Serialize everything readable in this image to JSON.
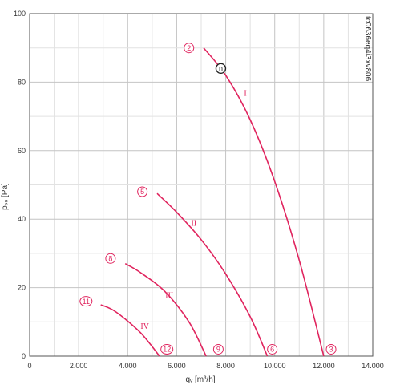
{
  "chart_data": {
    "type": "line",
    "title": "",
    "xlabel": "qᵥ [m³/h]",
    "ylabel": "pₛₒ [Pa]",
    "xlim": [
      0,
      14000
    ],
    "ylim": [
      0,
      100
    ],
    "x_ticks": [
      "0",
      "2.000",
      "4.000",
      "6.000",
      "8.000",
      "10.000",
      "12.000",
      "14.000"
    ],
    "y_ticks": [
      "0",
      "20",
      "40",
      "60",
      "80",
      "100"
    ],
    "grid": true,
    "side_code": "tc0636eq4i3xv806",
    "colors": {
      "curve": "#e0245e",
      "grid": "#c8c8c8",
      "axis": "#555555"
    },
    "series": [
      {
        "label": "I",
        "x": [
          7100,
          8000,
          9000,
          10000,
          11000,
          12000
        ],
        "y": [
          90,
          82,
          69,
          51,
          28,
          0
        ]
      },
      {
        "label": "II",
        "x": [
          5200,
          6000,
          7000,
          8000,
          9000,
          9700
        ],
        "y": [
          47.5,
          42,
          34,
          24,
          11.5,
          0
        ]
      },
      {
        "label": "III",
        "x": [
          3900,
          4500,
          5500,
          6500,
          7200
        ],
        "y": [
          27,
          24.5,
          19,
          10,
          0
        ]
      },
      {
        "label": "IV",
        "x": [
          2900,
          3500,
          4500,
          5300
        ],
        "y": [
          15,
          13,
          7,
          0
        ]
      }
    ],
    "markers": [
      {
        "label": "2",
        "x": 6500,
        "y": 90
      },
      {
        "label": "n",
        "x": 7800,
        "y": 84,
        "style": "dark"
      },
      {
        "label": "5",
        "x": 4600,
        "y": 48
      },
      {
        "label": "8",
        "x": 3300,
        "y": 28.5
      },
      {
        "label": "11",
        "x": 2300,
        "y": 16
      },
      {
        "label": "12",
        "x": 5600,
        "y": 2
      },
      {
        "label": "9",
        "x": 7700,
        "y": 2
      },
      {
        "label": "6",
        "x": 9900,
        "y": 2
      },
      {
        "label": "3",
        "x": 12300,
        "y": 2
      }
    ],
    "curve_labels": [
      {
        "text": "I",
        "x": 8800,
        "y": 76
      },
      {
        "text": "II",
        "x": 6700,
        "y": 38
      },
      {
        "text": "III",
        "x": 5700,
        "y": 17
      },
      {
        "text": "IV",
        "x": 4700,
        "y": 8
      }
    ]
  }
}
